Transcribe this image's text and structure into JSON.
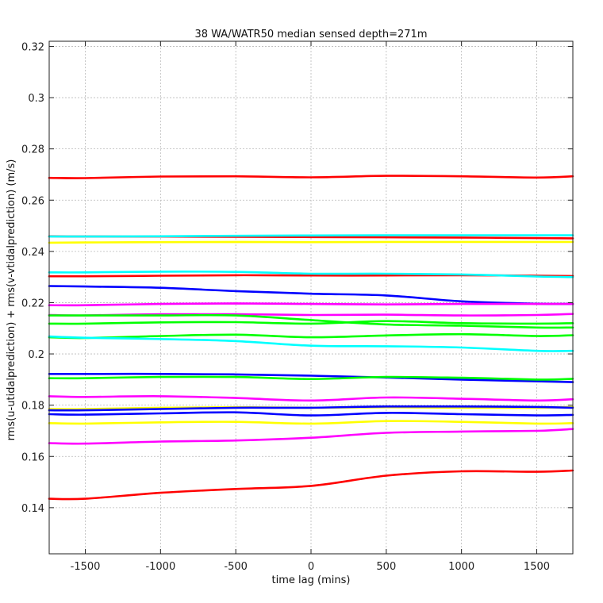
{
  "chart_data": {
    "type": "line",
    "title": "38 WA/WATR50 median sensed depth=271m",
    "xlabel": "time lag (mins)",
    "ylabel": "rms(u-utidalprediction) + rms(v-vtidalprediction) (m/s)",
    "xlim": [
      -1740,
      1740
    ],
    "ylim": [
      0.122,
      0.322
    ],
    "xticks": [
      -1500,
      -1000,
      -500,
      0,
      500,
      1000,
      1500
    ],
    "yticks": [
      0.14,
      0.16,
      0.18,
      0.2,
      0.22,
      0.24,
      0.26,
      0.28,
      0.3,
      0.32
    ],
    "ytick_labels": [
      "0.14",
      "0.16",
      "0.18",
      "0.2",
      "0.22",
      "0.24",
      "0.26",
      "0.28",
      "0.3",
      "0.32"
    ],
    "grid": true,
    "x": [
      -1740,
      -1500,
      -1000,
      -500,
      0,
      500,
      1000,
      1500,
      1740
    ],
    "series": [
      {
        "color": "#ff0000",
        "values": [
          0.2687,
          0.2686,
          0.2692,
          0.2693,
          0.2689,
          0.2695,
          0.2693,
          0.2688,
          0.2693
        ]
      },
      {
        "color": "#ff0000",
        "values": [
          0.2459,
          0.2458,
          0.2458,
          0.2457,
          0.2456,
          0.2455,
          0.2454,
          0.2452,
          0.2451
        ]
      },
      {
        "color": "#00ffff",
        "values": [
          0.2458,
          0.2458,
          0.2459,
          0.2461,
          0.2462,
          0.2463,
          0.2463,
          0.2463,
          0.2463
        ]
      },
      {
        "color": "#ffff00",
        "values": [
          0.2434,
          0.2435,
          0.2436,
          0.2437,
          0.2436,
          0.2437,
          0.2437,
          0.2437,
          0.2437
        ]
      },
      {
        "color": "#ff0000",
        "values": [
          0.2303,
          0.2303,
          0.2305,
          0.2307,
          0.2306,
          0.2306,
          0.2307,
          0.2305,
          0.2304
        ]
      },
      {
        "color": "#00ffff",
        "values": [
          0.2318,
          0.2318,
          0.2321,
          0.232,
          0.2313,
          0.2313,
          0.231,
          0.2302,
          0.23
        ]
      },
      {
        "color": "#0000ff",
        "values": [
          0.2265,
          0.2263,
          0.2258,
          0.2245,
          0.2235,
          0.2228,
          0.2205,
          0.2196,
          0.2195
        ]
      },
      {
        "color": "#ff00ff",
        "values": [
          0.219,
          0.219,
          0.2195,
          0.2197,
          0.2195,
          0.2193,
          0.2195,
          0.2195,
          0.2195
        ]
      },
      {
        "color": "#ff00ff",
        "values": [
          0.2152,
          0.215,
          0.2155,
          0.2155,
          0.2152,
          0.2153,
          0.215,
          0.2152,
          0.2156
        ]
      },
      {
        "color": "#00ff00",
        "values": [
          0.215,
          0.215,
          0.215,
          0.215,
          0.2132,
          0.2115,
          0.211,
          0.2103,
          0.2103
        ]
      },
      {
        "color": "#00ff00",
        "values": [
          0.2118,
          0.2118,
          0.2123,
          0.2124,
          0.2118,
          0.2128,
          0.212,
          0.2118,
          0.212
        ]
      },
      {
        "color": "#00ff00",
        "values": [
          0.2065,
          0.2062,
          0.207,
          0.2075,
          0.2065,
          0.2072,
          0.2077,
          0.207,
          0.2073
        ]
      },
      {
        "color": "#00ffff",
        "values": [
          0.2068,
          0.2063,
          0.2058,
          0.205,
          0.2032,
          0.203,
          0.2025,
          0.2012,
          0.2012
        ]
      },
      {
        "color": "#0000ff",
        "values": [
          0.1922,
          0.1922,
          0.1922,
          0.192,
          0.1915,
          0.1908,
          0.19,
          0.1893,
          0.189
        ]
      },
      {
        "color": "#00ff00",
        "values": [
          0.1905,
          0.1905,
          0.191,
          0.191,
          0.1902,
          0.191,
          0.1907,
          0.19,
          0.1903
        ]
      },
      {
        "color": "#ff00ff",
        "values": [
          0.1835,
          0.1832,
          0.1835,
          0.1828,
          0.1818,
          0.183,
          0.1825,
          0.1818,
          0.1823
        ]
      },
      {
        "color": "#ffff00",
        "values": [
          0.1785,
          0.1785,
          0.179,
          0.1792,
          0.179,
          0.1792,
          0.179,
          0.179,
          0.1793
        ]
      },
      {
        "color": "#0000ff",
        "values": [
          0.178,
          0.178,
          0.1785,
          0.179,
          0.179,
          0.1795,
          0.1795,
          0.1793,
          0.179
        ]
      },
      {
        "color": "#0000ff",
        "values": [
          0.1765,
          0.1763,
          0.1768,
          0.1772,
          0.176,
          0.177,
          0.1765,
          0.176,
          0.1762
        ]
      },
      {
        "color": "#ffff00",
        "values": [
          0.173,
          0.1728,
          0.1733,
          0.1735,
          0.1728,
          0.1738,
          0.1735,
          0.1728,
          0.173
        ]
      },
      {
        "color": "#ff00ff",
        "values": [
          0.1652,
          0.165,
          0.1658,
          0.1662,
          0.1673,
          0.1692,
          0.1697,
          0.17,
          0.1707
        ]
      },
      {
        "color": "#ff0000",
        "values": [
          0.1435,
          0.1435,
          0.1458,
          0.1473,
          0.1485,
          0.1525,
          0.1542,
          0.154,
          0.1545
        ]
      }
    ]
  }
}
